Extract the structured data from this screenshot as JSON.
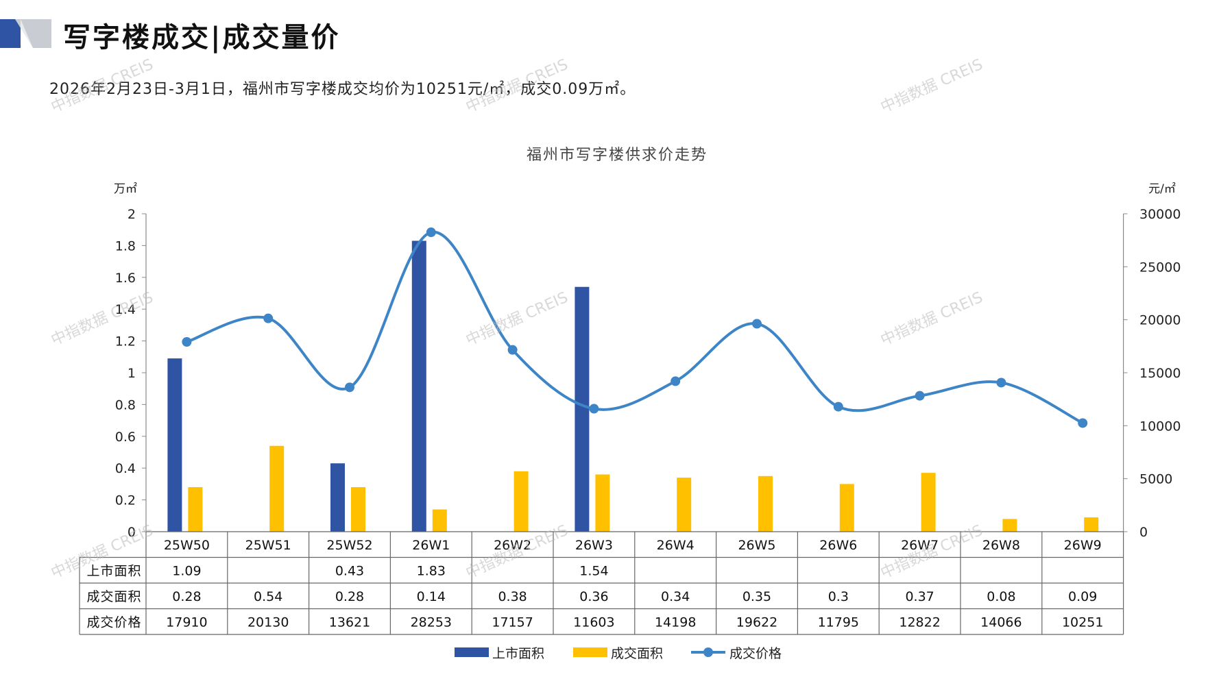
{
  "header": {
    "title": "写字楼成交|成交量价",
    "summary": "2026年2月23日-3月1日，福州市写字楼成交均价为10251元/㎡，成交0.09万㎡。"
  },
  "watermark_text": "中指数据 CREIS",
  "colors": {
    "listed": "#2F54A4",
    "traded": "#FFC000",
    "price": "#3D85C6",
    "accent": "#2F54A4"
  },
  "chart_data": {
    "type": "bar",
    "title": "福州市写字楼供求价走势",
    "ylabel_left": "万㎡",
    "ylabel_right": "元/㎡",
    "ylim_left": [
      0,
      2
    ],
    "ylim_right": [
      0,
      30000
    ],
    "yticks_left": [
      "0",
      "0.2",
      "0.4",
      "0.6",
      "0.8",
      "1",
      "1.2",
      "1.4",
      "1.6",
      "1.8",
      "2"
    ],
    "yticks_right": [
      "0",
      "5000",
      "10000",
      "15000",
      "20000",
      "25000",
      "30000"
    ],
    "categories": [
      "25W50",
      "25W51",
      "25W52",
      "26W1",
      "26W2",
      "26W3",
      "26W4",
      "26W5",
      "26W6",
      "26W7",
      "26W8",
      "26W9"
    ],
    "series": [
      {
        "name": "上市面积",
        "type": "bar",
        "axis": "left",
        "values": [
          1.09,
          null,
          0.43,
          1.83,
          null,
          1.54,
          null,
          null,
          null,
          null,
          null,
          null
        ],
        "labels": [
          "1.09",
          "",
          "0.43",
          "1.83",
          "",
          "1.54",
          "",
          "",
          "",
          "",
          "",
          ""
        ]
      },
      {
        "name": "成交面积",
        "type": "bar",
        "axis": "left",
        "values": [
          0.28,
          0.54,
          0.28,
          0.14,
          0.38,
          0.36,
          0.34,
          0.35,
          0.3,
          0.37,
          0.08,
          0.09
        ],
        "labels": [
          "0.28",
          "0.54",
          "0.28",
          "0.14",
          "0.38",
          "0.36",
          "0.34",
          "0.35",
          "0.3",
          "0.37",
          "0.08",
          "0.09"
        ]
      },
      {
        "name": "成交价格",
        "type": "line",
        "axis": "right",
        "values": [
          17910,
          20130,
          13621,
          28253,
          17157,
          11603,
          14198,
          19622,
          11795,
          12822,
          14066,
          10251
        ],
        "labels": [
          "17910",
          "20130",
          "13621",
          "28253",
          "17157",
          "11603",
          "14198",
          "19622",
          "11795",
          "12822",
          "14066",
          "10251"
        ]
      }
    ],
    "legend": "bottom-center",
    "grid": false
  }
}
